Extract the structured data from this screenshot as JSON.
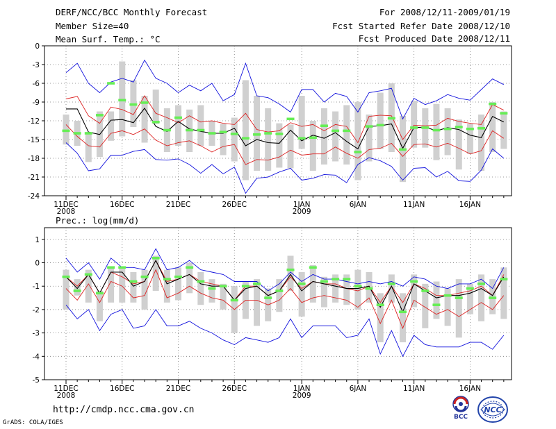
{
  "header": {
    "title": "DERF/NCC/BCC Monthly Forecast",
    "member_size": "Member Size=40",
    "period": "For 2008/12/11-2009/01/19",
    "fcst_started": "Fcst Started Refer Date 2008/12/10",
    "fcst_produced": "Fcst Produced Date 2008/12/11"
  },
  "footer": {
    "url": "http://cmdp.ncc.cma.gov.cn",
    "grads": "GrADS: COLA/IGES",
    "logo_bcc": "BCC",
    "logo_ncc": "NCC"
  },
  "colors": {
    "box": "#d0d0d0",
    "green": "#66ee55",
    "red": "#dd2222",
    "blue": "#1111dd",
    "ens_mean": "#000000"
  },
  "chart_data": [
    {
      "type": "line",
      "title": "Mean Surf. Temp.: °C",
      "ylim": [
        -24,
        0
      ],
      "yticks": [
        "0",
        "-3",
        "-6",
        "-9",
        "-12",
        "-15",
        "-18",
        "-21",
        "-24"
      ],
      "ytick_values": [
        0,
        -3,
        -6,
        -9,
        -12,
        -15,
        -18,
        -21,
        -24
      ],
      "xlabels": [
        {
          "day": 1,
          "label": "11DEC",
          "sub": "2008"
        },
        {
          "day": 6,
          "label": "16DEC",
          "sub": ""
        },
        {
          "day": 11,
          "label": "21DEC",
          "sub": ""
        },
        {
          "day": 16,
          "label": "26DEC",
          "sub": ""
        },
        {
          "day": 22,
          "label": "1JAN",
          "sub": "2009"
        },
        {
          "day": 27,
          "label": "6JAN",
          "sub": ""
        },
        {
          "day": 32,
          "label": "11JAN",
          "sub": ""
        },
        {
          "day": 37,
          "label": "16JAN",
          "sub": ""
        }
      ],
      "days": 40,
      "series": [
        {
          "name": "upper envelope",
          "color": "blue",
          "values": [
            -4.3,
            -2.8,
            -6.0,
            -7.5,
            -5.8,
            -5.2,
            -5.8,
            -2.3,
            -5.2,
            -6.0,
            -7.5,
            -6.3,
            -7.2,
            -6.0,
            -8.8,
            -7.8,
            -2.8,
            -8.0,
            -8.3,
            -9.3,
            -10.6,
            -7.0,
            -7.0,
            -9.0,
            -7.6,
            -8.1,
            -10.6,
            -7.5,
            -7.2,
            -6.8,
            -11.7,
            -8.4,
            -9.4,
            -8.8,
            -7.8,
            -8.4,
            -8.7,
            -7.0,
            -5.3,
            -6.2
          ]
        },
        {
          "name": "upper red",
          "color": "red",
          "values": [
            -8.5,
            -8.1,
            -11.2,
            -12.4,
            -9.8,
            -10.2,
            -11.0,
            -8.0,
            -10.8,
            -11.5,
            -12.3,
            -11.2,
            -12.2,
            -12.0,
            -12.4,
            -12.6,
            -10.8,
            -13.4,
            -13.8,
            -13.6,
            -12.3,
            -12.9,
            -12.6,
            -13.6,
            -12.6,
            -12.9,
            -15.5,
            -11.3,
            -11.1,
            -11.2,
            -15.0,
            -12.7,
            -12.8,
            -12.7,
            -11.6,
            -12.1,
            -12.4,
            -12.6,
            -9.4,
            -10.3
          ]
        },
        {
          "name": "ensemble mean",
          "color": "ens_mean",
          "values": [
            -10.1,
            -10.1,
            -13.8,
            -14.2,
            -11.9,
            -11.8,
            -12.3,
            -10.0,
            -12.9,
            -13.7,
            -12.1,
            -13.3,
            -13.7,
            -14.0,
            -14.0,
            -13.2,
            -16.0,
            -15.0,
            -15.5,
            -15.6,
            -13.5,
            -15.2,
            -14.3,
            -14.8,
            -13.9,
            -15.3,
            -16.5,
            -12.9,
            -12.8,
            -12.5,
            -16.4,
            -13.1,
            -13.0,
            -13.6,
            -13.1,
            -13.4,
            -14.3,
            -14.7,
            -11.3,
            -12.2
          ]
        },
        {
          "name": "lower red",
          "color": "red",
          "values": [
            -12.6,
            -14.5,
            -16.0,
            -16.2,
            -14.0,
            -13.6,
            -14.2,
            -13.3,
            -15.1,
            -16.0,
            -15.5,
            -15.2,
            -16.0,
            -17.0,
            -16.1,
            -15.8,
            -19.0,
            -18.2,
            -18.3,
            -17.8,
            -16.7,
            -17.5,
            -17.3,
            -17.3,
            -16.2,
            -17.2,
            -18.0,
            -16.6,
            -16.4,
            -15.6,
            -17.7,
            -15.8,
            -15.7,
            -16.2,
            -15.6,
            -16.4,
            -17.3,
            -16.8,
            -13.6,
            -14.8
          ]
        },
        {
          "name": "lower envelope",
          "color": "blue",
          "values": [
            -15.5,
            -17.2,
            -20.0,
            -19.7,
            -17.5,
            -17.5,
            -16.9,
            -16.6,
            -18.2,
            -18.3,
            -18.1,
            -19.0,
            -20.4,
            -19.0,
            -20.5,
            -19.4,
            -23.6,
            -21.2,
            -21.0,
            -20.2,
            -19.6,
            -21.5,
            -21.2,
            -20.6,
            -20.7,
            -21.9,
            -19.0,
            -17.9,
            -18.4,
            -19.3,
            -21.5,
            -19.6,
            -19.5,
            -21.0,
            -20.1,
            -21.6,
            -21.7,
            -19.9,
            -16.5,
            -18.0
          ]
        }
      ],
      "boxes": [
        [
          -11,
          -15.8
        ],
        [
          -12,
          -16
        ],
        [
          -13.8,
          -18.6
        ],
        [
          -10.5,
          -17.8
        ],
        [
          -10.5,
          -15.2
        ],
        [
          -2.5,
          -14.5
        ],
        [
          -5.5,
          -13
        ],
        [
          -8,
          -15.5
        ],
        [
          -7,
          -12.5
        ],
        [
          -10,
          -17
        ],
        [
          -9.5,
          -16
        ],
        [
          -10.2,
          -17
        ],
        [
          -9.5,
          -16
        ],
        [
          -12,
          -16
        ],
        [
          -12.5,
          -17.5
        ],
        [
          -11.5,
          -18.5
        ],
        [
          -5.5,
          -21.5
        ],
        [
          -8,
          -20
        ],
        [
          -10,
          -20
        ],
        [
          -12.4,
          -19.5
        ],
        [
          -12.6,
          -19.6
        ],
        [
          -8,
          -16.5
        ],
        [
          -12,
          -20
        ],
        [
          -10,
          -19
        ],
        [
          -10.5,
          -18.5
        ],
        [
          -9.5,
          -19
        ],
        [
          -9,
          -21.5
        ],
        [
          -11,
          -18.5
        ],
        [
          -7.5,
          -16.5
        ],
        [
          -6,
          -17
        ],
        [
          -11.2,
          -21.8
        ],
        [
          -8.8,
          -16.3
        ],
        [
          -10,
          -16.3
        ],
        [
          -9.3,
          -18.3
        ],
        [
          -10,
          -17.5
        ],
        [
          -11.8,
          -19.8
        ],
        [
          -12.5,
          -17.3
        ],
        [
          -11,
          -20
        ],
        [
          -9,
          -17
        ],
        [
          -10.5,
          -16.5
        ]
      ],
      "observed": [
        -13.6,
        -14.0,
        -14.0,
        -11.1,
        -6.0,
        -8.7,
        -9.4,
        -9.1,
        -12.2,
        -13.5,
        -11.5,
        -13.5,
        -13.5,
        -14.0,
        -13.8,
        -14.1,
        -14.8,
        -14.2,
        -14.0,
        -14.1,
        -11.7,
        -14.8,
        -14.7,
        -12.8,
        -13.6,
        -13.6,
        -17.0,
        -12.9,
        -12.7,
        -11.6,
        -16.6,
        -13.1,
        -13.1,
        -13.5,
        -13.3,
        -13.0,
        -13.3,
        -13.2,
        -9.3,
        -10.8
      ]
    },
    {
      "type": "line",
      "title": "Prec.: log(mm/d)",
      "ylim": [
        -5,
        1.5
      ],
      "yticks": [
        "1",
        "0",
        "-1",
        "-2",
        "-3",
        "-4",
        "-5"
      ],
      "ytick_values": [
        1,
        0,
        -1,
        -2,
        -3,
        -4,
        -5
      ],
      "xlabels": [
        {
          "day": 1,
          "label": "11DEC",
          "sub": "2008"
        },
        {
          "day": 6,
          "label": "16DEC",
          "sub": ""
        },
        {
          "day": 11,
          "label": "21DEC",
          "sub": ""
        },
        {
          "day": 16,
          "label": "26DEC",
          "sub": ""
        },
        {
          "day": 22,
          "label": "1JAN",
          "sub": "2009"
        },
        {
          "day": 27,
          "label": "6JAN",
          "sub": ""
        },
        {
          "day": 32,
          "label": "11JAN",
          "sub": ""
        },
        {
          "day": 37,
          "label": "16JAN",
          "sub": ""
        }
      ],
      "days": 40,
      "series": [
        {
          "name": "upper envelope",
          "color": "blue",
          "values": [
            0.2,
            -0.4,
            0.0,
            -0.7,
            0.2,
            -0.2,
            -0.2,
            -0.3,
            0.6,
            -0.3,
            -0.2,
            0.1,
            -0.3,
            -0.4,
            -0.5,
            -0.8,
            -0.8,
            -0.8,
            -1.2,
            -0.9,
            -0.4,
            -0.8,
            -0.5,
            -0.7,
            -0.7,
            -0.8,
            -0.9,
            -0.8,
            -0.9,
            -0.8,
            -1.0,
            -0.6,
            -0.7,
            -1.0,
            -1.1,
            -0.9,
            -0.9,
            -0.7,
            -1.1,
            -0.2
          ]
        },
        {
          "name": "upper red",
          "color": "red",
          "values": [
            -0.6,
            -1.0,
            -0.5,
            -1.3,
            -0.4,
            -0.6,
            -0.9,
            -0.8,
            0.1,
            -0.8,
            -0.7,
            -0.5,
            -0.8,
            -0.9,
            -1.0,
            -1.6,
            -1.0,
            -1.0,
            -1.4,
            -1.2,
            -0.6,
            -1.1,
            -0.8,
            -0.9,
            -0.9,
            -1.1,
            -1.2,
            -1.0,
            -1.7,
            -1.0,
            -1.7,
            -0.9,
            -1.1,
            -1.4,
            -1.4,
            -1.3,
            -1.2,
            -1.0,
            -1.4,
            -0.5
          ]
        },
        {
          "name": "ensemble mean",
          "color": "ens_mean",
          "values": [
            -0.6,
            -1.1,
            -0.5,
            -1.3,
            -0.4,
            -0.4,
            -1.0,
            -0.8,
            0.1,
            -0.9,
            -0.7,
            -0.5,
            -0.9,
            -1.0,
            -1.0,
            -1.6,
            -1.1,
            -1.0,
            -1.4,
            -1.2,
            -0.5,
            -1.2,
            -0.8,
            -0.9,
            -1.0,
            -1.1,
            -1.1,
            -1.0,
            -1.9,
            -1.0,
            -2.1,
            -0.9,
            -1.2,
            -1.5,
            -1.4,
            -1.4,
            -1.3,
            -1.1,
            -1.4,
            -0.6
          ]
        },
        {
          "name": "lower red",
          "color": "red",
          "values": [
            -1.1,
            -1.6,
            -0.9,
            -1.7,
            -0.8,
            -1.0,
            -1.5,
            -1.4,
            -0.3,
            -1.5,
            -1.3,
            -1.0,
            -1.3,
            -1.5,
            -1.6,
            -2.0,
            -1.6,
            -1.6,
            -1.8,
            -1.6,
            -1.1,
            -1.7,
            -1.5,
            -1.4,
            -1.5,
            -1.6,
            -1.9,
            -1.5,
            -2.6,
            -1.6,
            -2.8,
            -1.6,
            -1.9,
            -2.2,
            -2.0,
            -2.3,
            -2.0,
            -1.7,
            -2.0,
            -1.4
          ]
        },
        {
          "name": "lower envelope",
          "color": "blue",
          "values": [
            -1.8,
            -2.4,
            -2.0,
            -2.9,
            -2.2,
            -2.0,
            -2.8,
            -2.7,
            -2.0,
            -2.7,
            -2.7,
            -2.5,
            -2.8,
            -3.0,
            -3.3,
            -3.5,
            -3.2,
            -3.3,
            -3.4,
            -3.2,
            -2.4,
            -3.2,
            -2.7,
            -2.7,
            -2.7,
            -3.2,
            -3.1,
            -2.4,
            -3.9,
            -2.9,
            -4.0,
            -3.1,
            -3.5,
            -3.6,
            -3.6,
            -3.6,
            -3.4,
            -3.4,
            -3.7,
            -3.1
          ]
        }
      ],
      "boxes": [
        [
          -0.3,
          -2.0
        ],
        [
          -0.7,
          -1.4
        ],
        [
          -0.3,
          -1.7
        ],
        [
          -1.2,
          -2.5
        ],
        [
          -0.2,
          -1.7
        ],
        [
          -0.2,
          -1.7
        ],
        [
          -0.4,
          -1.7
        ],
        [
          -0.3,
          -2.0
        ],
        [
          0.3,
          -1.2
        ],
        [
          -0.3,
          -1.7
        ],
        [
          -0.2,
          -1.6
        ],
        [
          0.0,
          -1.3
        ],
        [
          -0.4,
          -1.8
        ],
        [
          -0.7,
          -1.7
        ],
        [
          -0.9,
          -2.0
        ],
        [
          -1.0,
          -3.0
        ],
        [
          -0.8,
          -2.4
        ],
        [
          -0.7,
          -2.7
        ],
        [
          -1.1,
          -2.5
        ],
        [
          -0.7,
          -2.1
        ],
        [
          0.3,
          -1.2
        ],
        [
          -0.4,
          -2.3
        ],
        [
          -0.1,
          -1.7
        ],
        [
          -0.6,
          -1.9
        ],
        [
          -0.5,
          -1.7
        ],
        [
          -0.5,
          -1.8
        ],
        [
          -0.3,
          -2.0
        ],
        [
          -0.4,
          -1.7
        ],
        [
          -1.3,
          -3.4
        ],
        [
          -0.5,
          -1.7
        ],
        [
          -1.3,
          -3.4
        ],
        [
          -0.5,
          -1.9
        ],
        [
          -0.9,
          -2.8
        ],
        [
          -0.8,
          -2.4
        ],
        [
          -1.1,
          -2.7
        ],
        [
          -0.7,
          -3.2
        ],
        [
          -0.9,
          -2.2
        ],
        [
          -0.5,
          -2.5
        ],
        [
          -0.7,
          -2.2
        ],
        [
          -0.2,
          -2.4
        ]
      ],
      "observed": [
        -0.6,
        -1.2,
        -0.5,
        -1.3,
        -0.2,
        -0.2,
        -0.8,
        -0.6,
        0.2,
        -0.7,
        -0.6,
        -0.2,
        -0.8,
        -1.1,
        -1.0,
        -1.6,
        -1.0,
        -0.9,
        -1.5,
        -1.2,
        -0.3,
        -0.9,
        -0.2,
        -0.8,
        -0.7,
        -0.7,
        -1.0,
        -1.1,
        -1.8,
        -0.9,
        -2.1,
        -0.8,
        -1.2,
        -1.8,
        -1.4,
        -1.5,
        -1.1,
        -0.9,
        -1.5,
        -0.7
      ]
    }
  ]
}
